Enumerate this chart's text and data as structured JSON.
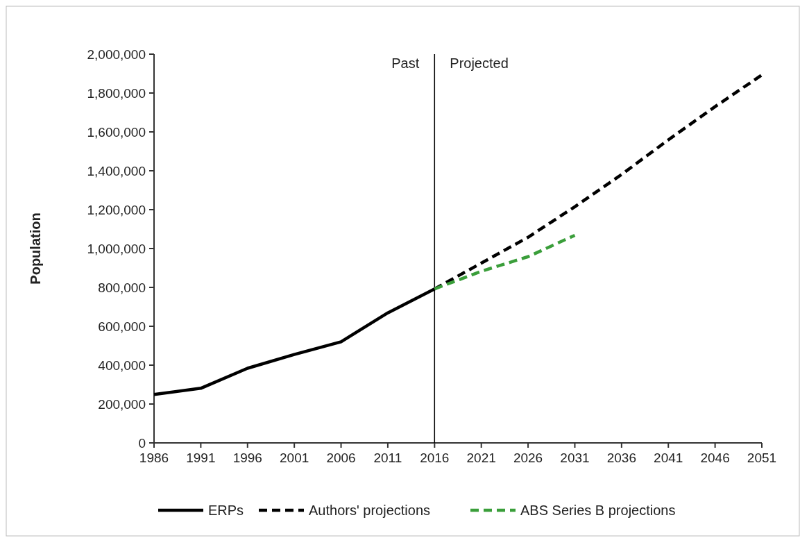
{
  "chart_data": {
    "type": "line",
    "ylabel": "Population",
    "xlim": [
      1986,
      2051
    ],
    "xticks": [
      1986,
      1991,
      1996,
      2001,
      2006,
      2011,
      2016,
      2021,
      2026,
      2031,
      2036,
      2041,
      2046,
      2051
    ],
    "ylim": [
      0,
      2000000
    ],
    "yticks": [
      {
        "value": 0,
        "label": "0"
      },
      {
        "value": 200000,
        "label": "200,000"
      },
      {
        "value": 400000,
        "label": "400,000"
      },
      {
        "value": 600000,
        "label": "600,000"
      },
      {
        "value": 800000,
        "label": "800,000"
      },
      {
        "value": 1000000,
        "label": "1,000,000"
      },
      {
        "value": 1200000,
        "label": "1,200,000"
      },
      {
        "value": 1400000,
        "label": "1,400,000"
      },
      {
        "value": 1600000,
        "label": "1,600,000"
      },
      {
        "value": 1800000,
        "label": "1,800,000"
      },
      {
        "value": 2000000,
        "label": "2,000,000"
      }
    ],
    "grid": false,
    "legend": "bottom",
    "ref_lines": [
      {
        "axis": "x",
        "value": 2016,
        "color": "#000000"
      }
    ],
    "annotations": [
      {
        "text": "Past",
        "x": 2016,
        "y": 2000000
      },
      {
        "text": "Projected",
        "x": 2016,
        "y": 2000000
      }
    ],
    "series": [
      {
        "name": "ERPs",
        "color": "#000000",
        "line_style": "solid",
        "x": [
          1986,
          1991,
          1996,
          2001,
          2006,
          2011,
          2016
        ],
        "values": [
          249000,
          281000,
          384000,
          455000,
          520000,
          669000,
          792000
        ]
      },
      {
        "name": "Authors' projections",
        "color": "#000000",
        "line_style": "dashed",
        "x": [
          2016,
          2021,
          2026,
          2031,
          2036,
          2041,
          2046,
          2051
        ],
        "values": [
          792000,
          925000,
          1058000,
          1215000,
          1381000,
          1559000,
          1730000,
          1893000
        ]
      },
      {
        "name": "ABS Series B projections",
        "color": "#3a9e3a",
        "line_style": "dashed",
        "x": [
          2016,
          2021,
          2026,
          2031
        ],
        "values": [
          792000,
          883000,
          958000,
          1068000
        ]
      }
    ]
  }
}
